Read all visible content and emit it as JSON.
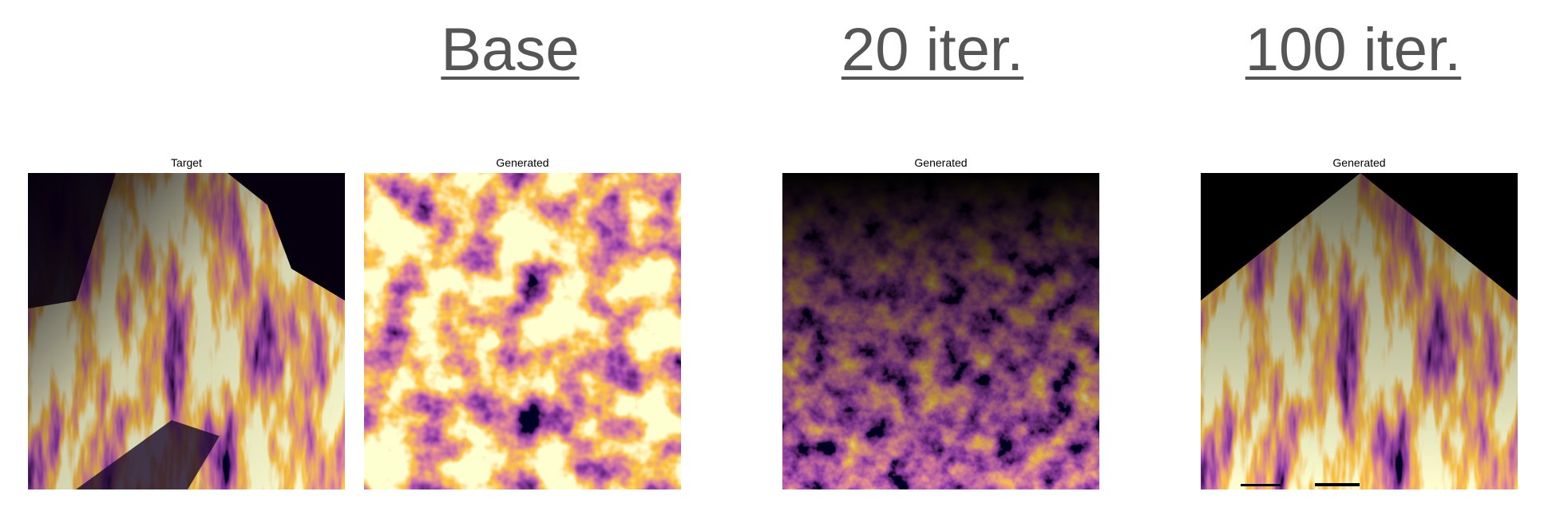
{
  "header": {
    "titles": [
      "Base",
      "20 iter.",
      "100 iter."
    ]
  },
  "panels": [
    {
      "label": "Target"
    },
    {
      "label": "Generated"
    },
    {
      "label": "Generated"
    },
    {
      "label": "Generated"
    }
  ]
}
